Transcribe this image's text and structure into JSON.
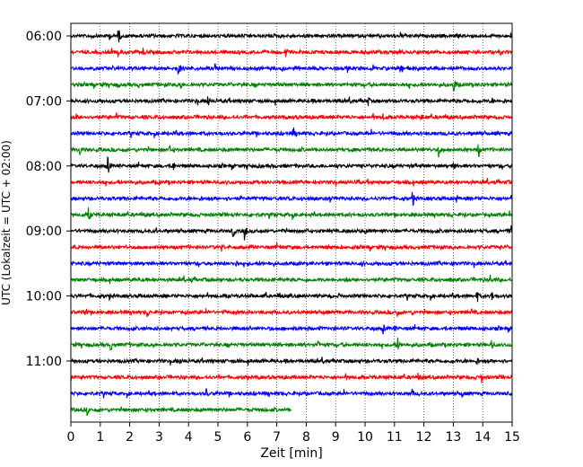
{
  "chart_data": {
    "type": "line",
    "title": "",
    "xlabel": "Zeit  [min]",
    "ylabel": "UTC (Lokalzeit = UTC + 02:00)",
    "xlim": [
      0,
      15
    ],
    "x_ticks": [
      "0",
      "1",
      "2",
      "3",
      "4",
      "5",
      "6",
      "7",
      "8",
      "9",
      "10",
      "11",
      "12",
      "13",
      "14",
      "15"
    ],
    "grid": "vertical dotted",
    "legend": "none",
    "y_ticks": [
      {
        "label": "06:00",
        "trace_index": 0
      },
      {
        "label": "07:00",
        "trace_index": 4
      },
      {
        "label": "08:00",
        "trace_index": 8
      },
      {
        "label": "09:00",
        "trace_index": 12
      },
      {
        "label": "10:00",
        "trace_index": 16
      },
      {
        "label": "11:00",
        "trace_index": 20
      }
    ],
    "trace_interval_minutes": 15,
    "color_cycle": [
      "#000000",
      "#ff0000",
      "#0000ff",
      "#008000"
    ],
    "series": [
      {
        "start": "06:00",
        "end_minute": 15,
        "events": [
          [
            1.6,
            1.0
          ],
          [
            1.3,
            0.45
          ],
          [
            0.7,
            0.3
          ],
          [
            3.3,
            0.25
          ],
          [
            6.9,
            0.25
          ],
          [
            10.5,
            0.3
          ]
        ]
      },
      {
        "start": "06:15",
        "end_minute": 15,
        "events": [
          [
            1.6,
            0.4
          ],
          [
            2.45,
            0.55
          ],
          [
            7.3,
            0.55
          ],
          [
            11.2,
            0.3
          ]
        ]
      },
      {
        "start": "06:30",
        "end_minute": 15,
        "events": [
          [
            1.4,
            0.35
          ],
          [
            3.65,
            0.8
          ],
          [
            4.9,
            0.55
          ],
          [
            11.2,
            1.0
          ],
          [
            11.6,
            0.3
          ]
        ]
      },
      {
        "start": "06:45",
        "end_minute": 15,
        "events": [
          [
            1.6,
            0.4
          ],
          [
            3.7,
            0.9
          ],
          [
            13.0,
            1.0
          ],
          [
            2.3,
            0.3
          ]
        ]
      },
      {
        "start": "07:00",
        "end_minute": 15,
        "events": [
          [
            4.65,
            0.7
          ],
          [
            4.25,
            0.35
          ],
          [
            10.1,
            0.5
          ],
          [
            14.3,
            0.45
          ],
          [
            13.5,
            0.3
          ]
        ]
      },
      {
        "start": "07:15",
        "end_minute": 15,
        "events": [
          [
            0.15,
            0.55
          ],
          [
            1.55,
            0.45
          ],
          [
            10.6,
            0.4
          ],
          [
            11.9,
            0.45
          ]
        ]
      },
      {
        "start": "07:30",
        "end_minute": 15,
        "events": [
          [
            7.55,
            0.8
          ],
          [
            3.5,
            0.3
          ],
          [
            13.8,
            0.35
          ],
          [
            14.5,
            0.3
          ]
        ]
      },
      {
        "start": "07:45",
        "end_minute": 15,
        "events": [
          [
            0.3,
            0.65
          ],
          [
            3.35,
            0.5
          ],
          [
            12.5,
            0.8
          ],
          [
            13.85,
            0.9
          ]
        ]
      },
      {
        "start": "08:00",
        "end_minute": 15,
        "events": [
          [
            1.25,
            0.95
          ],
          [
            3.45,
            0.85
          ],
          [
            2.3,
            0.25
          ],
          [
            9.0,
            0.25
          ],
          [
            13.0,
            0.5
          ],
          [
            11.7,
            0.3
          ]
        ]
      },
      {
        "start": "08:15",
        "end_minute": 15,
        "events": [
          [
            3.0,
            0.35
          ],
          [
            5.3,
            0.3
          ],
          [
            9.7,
            0.35
          ],
          [
            12.3,
            0.3
          ]
        ]
      },
      {
        "start": "08:30",
        "end_minute": 15,
        "events": [
          [
            11.6,
            1.0
          ],
          [
            8.8,
            0.55
          ],
          [
            13.1,
            0.45
          ],
          [
            5.3,
            0.25
          ]
        ]
      },
      {
        "start": "08:45",
        "end_minute": 15,
        "events": [
          [
            0.6,
            0.85
          ],
          [
            7.5,
            0.7
          ],
          [
            5.5,
            0.3
          ],
          [
            8.9,
            0.3
          ]
        ]
      },
      {
        "start": "09:00",
        "end_minute": 15,
        "events": [
          [
            5.5,
            0.9
          ],
          [
            5.9,
            0.85
          ],
          [
            14.95,
            0.65
          ],
          [
            2.9,
            0.35
          ],
          [
            10.0,
            0.35
          ],
          [
            13.4,
            0.3
          ]
        ]
      },
      {
        "start": "09:15",
        "end_minute": 15,
        "events": [
          [
            5.1,
            0.55
          ],
          [
            0.2,
            0.3
          ],
          [
            12.5,
            0.3
          ],
          [
            14.6,
            0.3
          ]
        ]
      },
      {
        "start": "09:30",
        "end_minute": 15,
        "events": [
          [
            5.6,
            0.6
          ],
          [
            13.05,
            0.55
          ],
          [
            9.9,
            0.3
          ],
          [
            2.0,
            0.25
          ]
        ]
      },
      {
        "start": "09:45",
        "end_minute": 15,
        "events": [
          [
            4.1,
            0.3
          ],
          [
            2.3,
            0.25
          ],
          [
            14.25,
            0.6
          ],
          [
            8.0,
            0.3
          ],
          [
            12.9,
            0.3
          ]
        ]
      },
      {
        "start": "10:00",
        "end_minute": 15,
        "events": [
          [
            1.3,
            0.4
          ],
          [
            7.1,
            0.45
          ],
          [
            13.8,
            0.75
          ],
          [
            14.3,
            0.55
          ],
          [
            9.1,
            0.3
          ]
        ]
      },
      {
        "start": "10:15",
        "end_minute": 15,
        "events": [
          [
            0.5,
            0.55
          ],
          [
            2.6,
            0.7
          ],
          [
            11.1,
            0.6
          ],
          [
            11.6,
            0.3
          ],
          [
            13.6,
            0.45
          ]
        ]
      },
      {
        "start": "10:30",
        "end_minute": 15,
        "events": [
          [
            6.05,
            0.55
          ],
          [
            10.6,
            0.65
          ],
          [
            11.0,
            0.35
          ],
          [
            14.0,
            0.3
          ],
          [
            9.2,
            0.3
          ]
        ]
      },
      {
        "start": "10:45",
        "end_minute": 15,
        "events": [
          [
            1.35,
            0.65
          ],
          [
            8.4,
            0.55
          ],
          [
            11.1,
            0.8
          ],
          [
            14.3,
            0.65
          ],
          [
            2.8,
            0.3
          ]
        ]
      },
      {
        "start": "11:00",
        "end_minute": 15,
        "events": [
          [
            3.7,
            0.35
          ],
          [
            5.2,
            0.3
          ],
          [
            7.3,
            0.25
          ],
          [
            13.8,
            0.5
          ],
          [
            2.5,
            0.3
          ]
        ]
      },
      {
        "start": "11:15",
        "end_minute": 15,
        "events": [
          [
            11.8,
            0.6
          ],
          [
            13.95,
            0.65
          ],
          [
            2.4,
            0.3
          ],
          [
            6.0,
            0.25
          ]
        ]
      },
      {
        "start": "11:30",
        "end_minute": 15,
        "events": [
          [
            4.6,
            0.6
          ],
          [
            11.6,
            0.5
          ],
          [
            13.3,
            0.45
          ],
          [
            8.5,
            0.3
          ]
        ]
      },
      {
        "start": "11:45",
        "end_minute": 7.5,
        "events": [
          [
            0.55,
            0.55
          ],
          [
            2.7,
            0.2
          ],
          [
            5.2,
            0.2
          ]
        ]
      }
    ]
  }
}
